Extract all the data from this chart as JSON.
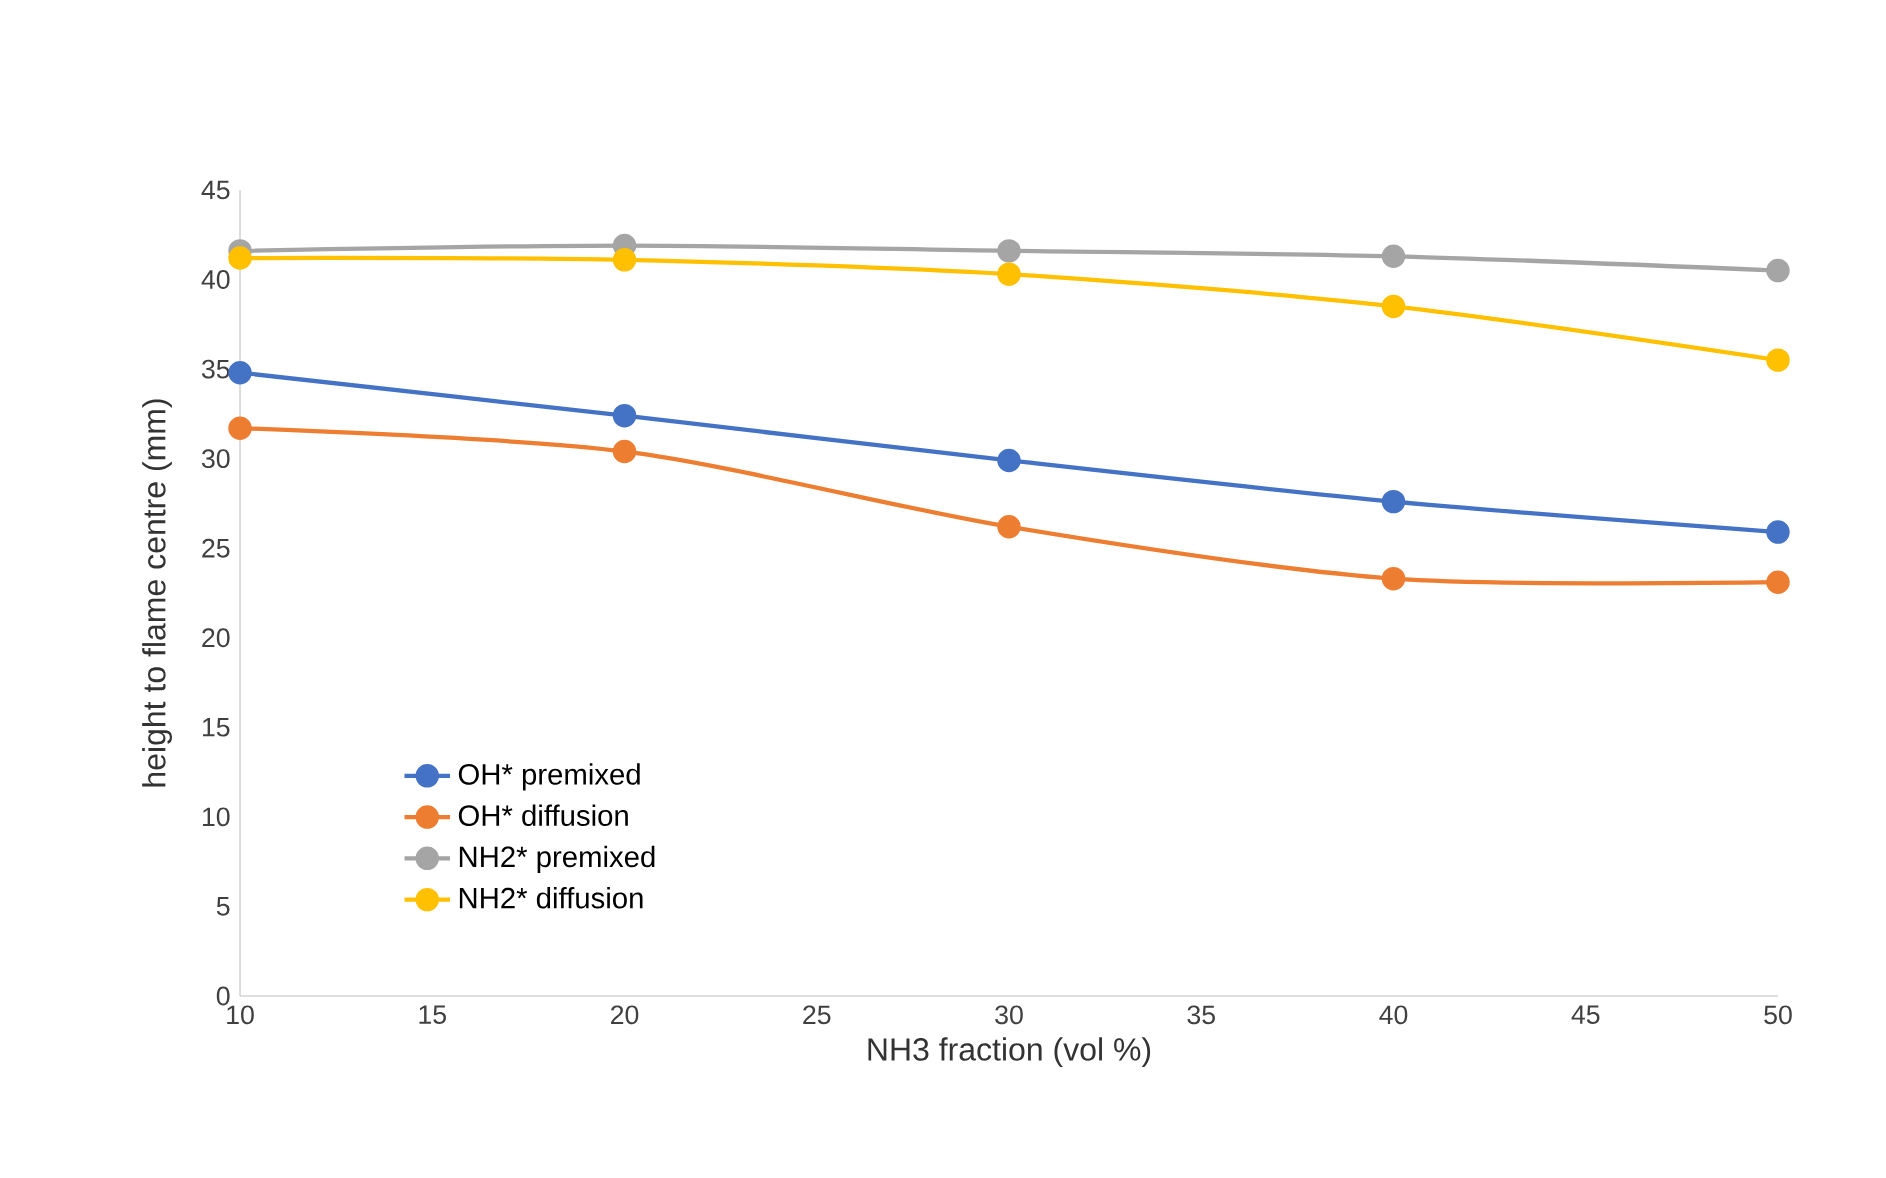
{
  "chart_data": {
    "type": "line",
    "xlabel": "NH3 fraction (vol %)",
    "ylabel": "height to flame centre (mm)",
    "x": [
      10,
      20,
      30,
      40,
      50
    ],
    "series": [
      {
        "name": "OH* premixed",
        "color": "#4472c4",
        "values": [
          34.8,
          32.4,
          29.9,
          27.6,
          25.9
        ]
      },
      {
        "name": "OH* diffusion",
        "color": "#ed7d31",
        "values": [
          31.7,
          30.4,
          26.2,
          23.3,
          23.1
        ]
      },
      {
        "name": "NH2* premixed",
        "color": "#a5a5a5",
        "values": [
          41.6,
          41.9,
          41.6,
          41.3,
          40.5
        ]
      },
      {
        "name": "NH2* diffusion",
        "color": "#ffc000",
        "values": [
          41.2,
          41.1,
          40.3,
          38.5,
          35.5
        ]
      }
    ],
    "xlim": [
      10,
      50
    ],
    "xticks": [
      10,
      15,
      20,
      25,
      30,
      35,
      40,
      45,
      50
    ],
    "ylim": [
      0,
      45
    ],
    "yticks": [
      0,
      5,
      10,
      15,
      20,
      25,
      30,
      35,
      40,
      45
    ],
    "grid": false,
    "legend": "bottom left",
    "marker": "circle",
    "line_style": "solid"
  }
}
